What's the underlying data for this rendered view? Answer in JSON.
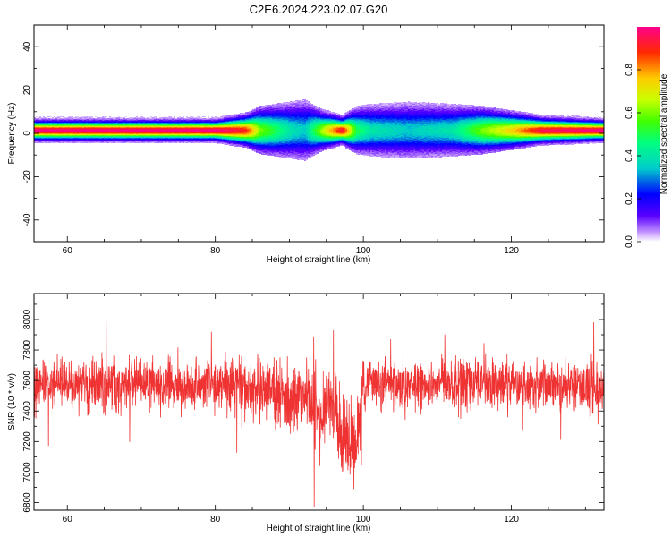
{
  "title": "C2E6.2024.223.02.07.G20",
  "chart_data": [
    {
      "type": "heatmap",
      "xlabel": "Height of straight line (km)",
      "ylabel": "Frequency (Hz)",
      "xlim": [
        55.5,
        132.5
      ],
      "ylim": [
        -50,
        50
      ],
      "x_ticks": [
        60,
        80,
        100,
        120
      ],
      "y_ticks": [
        -40,
        -20,
        0,
        20,
        40
      ],
      "colorbar": {
        "label": "Normalized spectral amplitude",
        "range": [
          0,
          1
        ],
        "ticks": [
          "0.0",
          "0.2",
          "0.4",
          "0.6",
          "0.8"
        ]
      },
      "band_center_hz": 1.5,
      "band_profile": [
        {
          "x": 56,
          "peak": 1.0,
          "width_hz": 4
        },
        {
          "x": 70,
          "peak": 1.0,
          "width_hz": 4
        },
        {
          "x": 80,
          "peak": 1.0,
          "width_hz": 4
        },
        {
          "x": 84,
          "peak": 0.9,
          "width_hz": 6
        },
        {
          "x": 86,
          "peak": 0.6,
          "width_hz": 9
        },
        {
          "x": 90,
          "peak": 0.4,
          "width_hz": 11
        },
        {
          "x": 92,
          "peak": 0.35,
          "width_hz": 12
        },
        {
          "x": 94,
          "peak": 0.6,
          "width_hz": 8
        },
        {
          "x": 97,
          "peak": 0.95,
          "width_hz": 5
        },
        {
          "x": 99,
          "peak": 0.5,
          "width_hz": 9
        },
        {
          "x": 101,
          "peak": 0.4,
          "width_hz": 10
        },
        {
          "x": 106,
          "peak": 0.35,
          "width_hz": 11
        },
        {
          "x": 112,
          "peak": 0.4,
          "width_hz": 10
        },
        {
          "x": 116,
          "peak": 0.6,
          "width_hz": 9
        },
        {
          "x": 120,
          "peak": 0.75,
          "width_hz": 7
        },
        {
          "x": 124,
          "peak": 0.95,
          "width_hz": 5
        },
        {
          "x": 132,
          "peak": 1.0,
          "width_hz": 4
        }
      ]
    },
    {
      "type": "line",
      "xlabel": "Height of straight line (km)",
      "ylabel": "SNR (10 * v/v)",
      "xlim": [
        55.5,
        132.5
      ],
      "ylim": [
        6750,
        8170
      ],
      "x_ticks": [
        60,
        80,
        100,
        120
      ],
      "y_ticks": [
        6800,
        7000,
        7200,
        7400,
        7600,
        7800,
        8000
      ],
      "series": [
        {
          "color": "#ef3333",
          "x": [
            55.5,
            56,
            57,
            58,
            59,
            60,
            61,
            62,
            63,
            64,
            65,
            66,
            67,
            68,
            69,
            70,
            71,
            72,
            73,
            74,
            75,
            76,
            77,
            78,
            79,
            80,
            81,
            82,
            83,
            84,
            85,
            86,
            87,
            88,
            89,
            90,
            91,
            92,
            93,
            94,
            95,
            96,
            97,
            98,
            99,
            100,
            101,
            102,
            103,
            104,
            105,
            106,
            107,
            108,
            109,
            110,
            111,
            112,
            113,
            114,
            115,
            116,
            117,
            118,
            119,
            120,
            121,
            122,
            123,
            124,
            125,
            126,
            127,
            128,
            129,
            130,
            131,
            132,
            132.5
          ],
          "mean": [
            7560,
            7560,
            7570,
            7560,
            7580,
            7570,
            7560,
            7580,
            7560,
            7570,
            7570,
            7580,
            7560,
            7570,
            7580,
            7570,
            7560,
            7590,
            7570,
            7580,
            7560,
            7570,
            7580,
            7560,
            7590,
            7570,
            7580,
            7590,
            7600,
            7570,
            7520,
            7530,
            7560,
            7540,
            7500,
            7480,
            7480,
            7520,
            7420,
            7380,
            7450,
            7380,
            7250,
            7200,
            7100,
            7560,
            7600,
            7580,
            7590,
            7580,
            7570,
            7590,
            7580,
            7560,
            7570,
            7580,
            7590,
            7570,
            7560,
            7580,
            7570,
            7590,
            7580,
            7560,
            7570,
            7580,
            7570,
            7560,
            7580,
            7570,
            7590,
            7560,
            7570,
            7580,
            7560,
            7550,
            7540,
            7550,
            7560
          ],
          "spread": [
            170,
            170,
            180,
            170,
            180,
            170,
            180,
            170,
            180,
            170,
            180,
            170,
            180,
            170,
            180,
            170,
            180,
            170,
            180,
            170,
            180,
            170,
            180,
            170,
            180,
            180,
            180,
            190,
            190,
            210,
            230,
            240,
            220,
            230,
            260,
            270,
            260,
            230,
            260,
            290,
            260,
            280,
            320,
            330,
            320,
            190,
            170,
            170,
            180,
            170,
            180,
            170,
            180,
            170,
            180,
            170,
            180,
            170,
            180,
            170,
            180,
            170,
            180,
            170,
            180,
            170,
            180,
            170,
            180,
            170,
            180,
            170,
            180,
            170,
            180,
            190,
            220,
            200,
            180
          ]
        }
      ]
    }
  ]
}
